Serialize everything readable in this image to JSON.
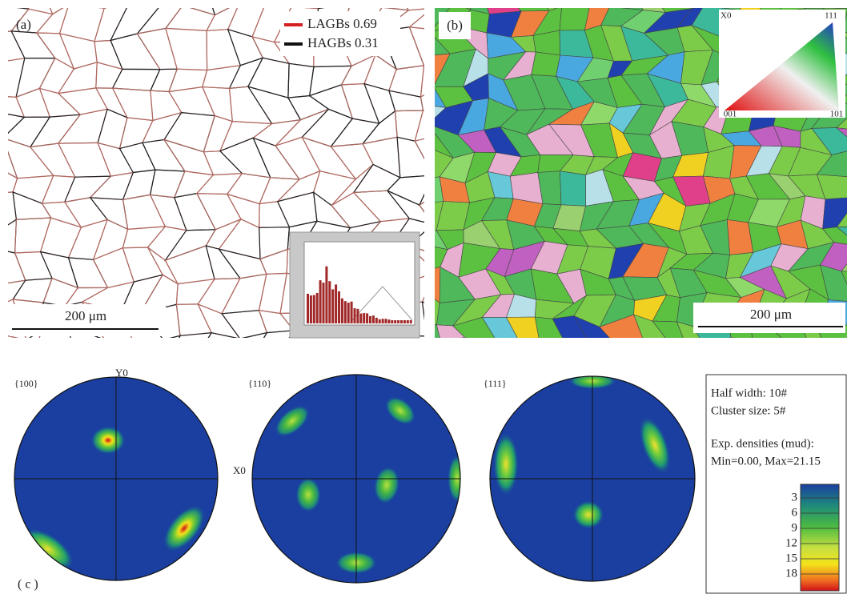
{
  "panel_a": {
    "label": "(a)",
    "legend": [
      "LAGBs 0.69",
      "HAGBs 0.31"
    ],
    "scale_bar": "200 μm"
  },
  "panel_b": {
    "label": "(b)",
    "ipf": {
      "axis": "X0",
      "corners": [
        "111",
        "001",
        "101"
      ]
    },
    "scale_bar": "200 μm"
  },
  "panel_c": {
    "label": "( c )",
    "pole_figures": [
      {
        "label": "{100}",
        "top_axis": "Y0",
        "right_axis": "X0"
      },
      {
        "label": "{110}"
      },
      {
        "label": "{111}"
      }
    ],
    "info": [
      "Half width: 10#",
      "Cluster size: 5#",
      "Exp. densities (mud):",
      "Min=0.00, Max=21.15"
    ],
    "colorbar": [
      3,
      6,
      9,
      12,
      15,
      18
    ]
  }
}
